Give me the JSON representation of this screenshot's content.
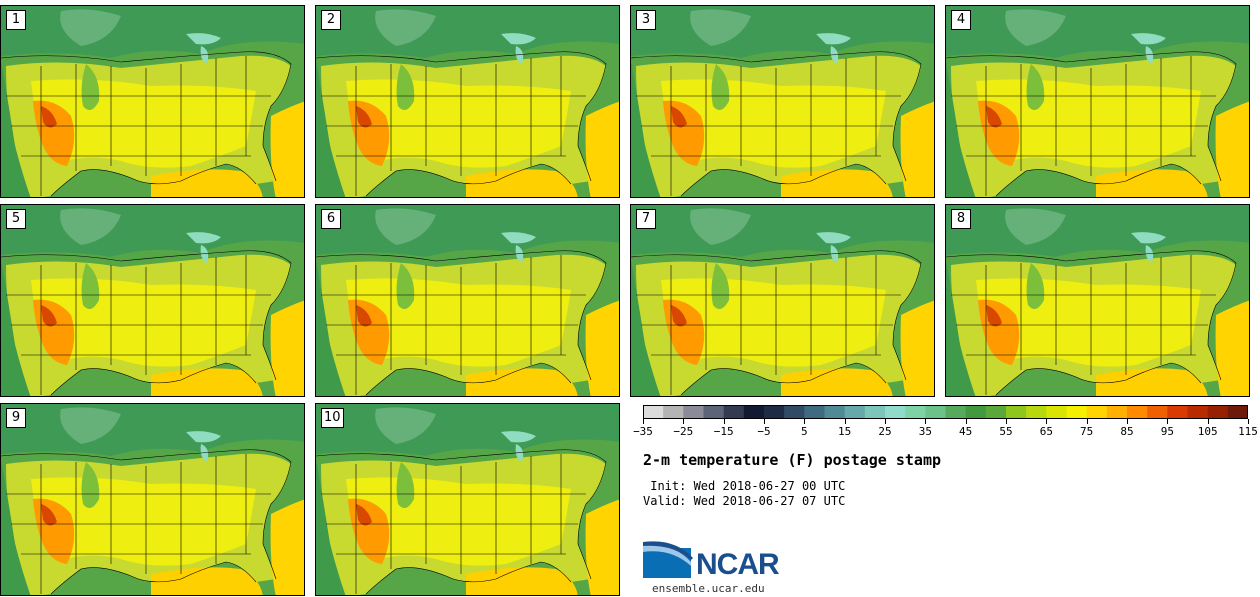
{
  "members": [
    "1",
    "2",
    "3",
    "4",
    "5",
    "6",
    "7",
    "8",
    "9",
    "10"
  ],
  "colorbar": {
    "colors": [
      "#dcdcdc",
      "#b4b4b4",
      "#8a8a99",
      "#5e6478",
      "#333b52",
      "#111a30",
      "#1d2b45",
      "#2f4b65",
      "#3f6a80",
      "#4f8a96",
      "#66a9aa",
      "#7cc5bb",
      "#8fdccb",
      "#7ed3a6",
      "#6cc38a",
      "#55aa5e",
      "#429a40",
      "#5aa83a",
      "#8ec61c",
      "#b8d80e",
      "#d9e400",
      "#f4f000",
      "#ffd400",
      "#ffb000",
      "#ff8a00",
      "#f06000",
      "#d83a00",
      "#b82a00",
      "#962000",
      "#6e1a0a"
    ],
    "tick_labels": [
      "−35",
      "−25",
      "−15",
      "−5",
      "5",
      "15",
      "25",
      "35",
      "45",
      "55",
      "65",
      "75",
      "85",
      "95",
      "105",
      "115"
    ]
  },
  "title": "2-m temperature (F) postage stamp",
  "init": " Init: Wed 2018-06-27 00 UTC",
  "valid": "Valid: Wed 2018-06-27 07 UTC",
  "logo": {
    "text": "NCAR"
  },
  "site": "ensemble.ucar.edu"
}
